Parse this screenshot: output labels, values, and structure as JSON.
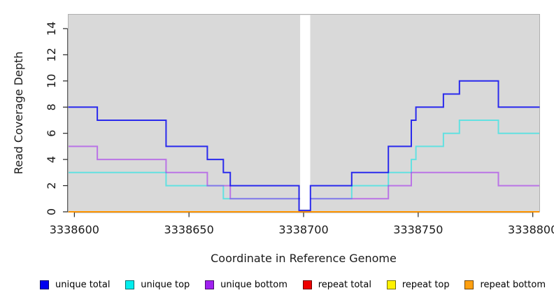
{
  "figure": {
    "background": "#ffffff"
  },
  "chart_data": {
    "type": "line",
    "subtype": "step-coverage",
    "xlabel": "Coordinate in Reference Genome",
    "ylabel": "Read Coverage Depth",
    "x_ticks": [
      3338600,
      3338650,
      3338700,
      3338750,
      3338800
    ],
    "y_ticks": [
      0,
      2,
      4,
      6,
      8,
      10,
      12,
      14
    ],
    "xlim": [
      3338597.3,
      3338803
    ],
    "ylim": [
      0,
      15.09
    ],
    "grid": false,
    "plot_bg": "#d9d9d9",
    "plot_border": "#b0b0b0",
    "axis_color": "#262626",
    "gap": {
      "x1": 3338698.5,
      "x2": 3338702.9,
      "color": "#ffffff"
    },
    "series": [
      {
        "name": "unique total",
        "color": "#0b0bf0",
        "opacity": 0.85,
        "steps": [
          [
            3338597.3,
            8
          ],
          [
            3338610,
            7
          ],
          [
            3338640,
            5
          ],
          [
            3338658,
            4
          ],
          [
            3338665,
            3
          ],
          [
            3338668,
            2
          ],
          [
            3338698,
            0.1
          ],
          [
            3338703,
            2
          ],
          [
            3338721,
            3
          ],
          [
            3338737,
            5
          ],
          [
            3338747,
            7
          ],
          [
            3338749,
            8
          ],
          [
            3338761,
            9
          ],
          [
            3338768,
            10
          ],
          [
            3338785,
            8
          ],
          [
            3338803,
            8
          ]
        ]
      },
      {
        "name": "unique top",
        "color": "#00e8e8",
        "opacity": 0.55,
        "steps": [
          [
            3338597.3,
            3
          ],
          [
            3338640,
            2
          ],
          [
            3338665,
            1
          ],
          [
            3338721,
            2
          ],
          [
            3338737,
            3
          ],
          [
            3338747,
            4
          ],
          [
            3338749,
            5
          ],
          [
            3338761,
            6
          ],
          [
            3338768,
            7
          ],
          [
            3338785,
            6
          ],
          [
            3338803,
            6
          ]
        ]
      },
      {
        "name": "unique bottom",
        "color": "#a020f0",
        "opacity": 0.55,
        "steps": [
          [
            3338597.3,
            5
          ],
          [
            3338610,
            4
          ],
          [
            3338640,
            3
          ],
          [
            3338658,
            2
          ],
          [
            3338668,
            1
          ],
          [
            3338737,
            2
          ],
          [
            3338747,
            3
          ],
          [
            3338785,
            2
          ],
          [
            3338803,
            2
          ]
        ]
      },
      {
        "name": "repeat total",
        "color": "#e00000",
        "opacity": 0.9,
        "steps": [
          [
            3338597.3,
            0
          ],
          [
            3338803,
            0
          ]
        ]
      },
      {
        "name": "repeat top",
        "color": "#f5f500",
        "opacity": 0.9,
        "steps": [
          [
            3338597.3,
            0
          ],
          [
            3338803,
            0
          ]
        ]
      },
      {
        "name": "repeat bottom",
        "color": "#ff8c00",
        "opacity": 0.9,
        "steps": [
          [
            3338597.3,
            0
          ],
          [
            3338803,
            0
          ]
        ]
      }
    ],
    "legend_position": "bottom"
  },
  "legend": {
    "items": [
      {
        "label": "unique total",
        "color": "#0000f0"
      },
      {
        "label": "unique top",
        "color": "#00eeee"
      },
      {
        "label": "unique bottom",
        "color": "#a020f0"
      },
      {
        "label": "repeat total",
        "color": "#ee0000"
      },
      {
        "label": "repeat top",
        "color": "#fff200"
      },
      {
        "label": "repeat bottom",
        "color": "#ffa010"
      }
    ]
  }
}
